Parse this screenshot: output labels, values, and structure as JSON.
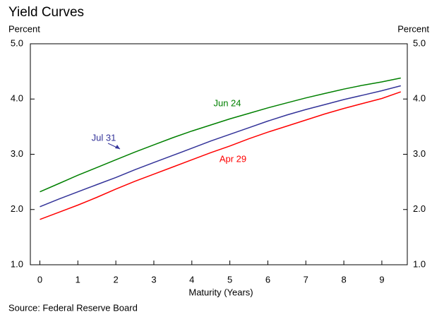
{
  "chart_data": {
    "type": "line",
    "title": "Yield Curves",
    "ylabel": "Percent",
    "y2label": "Percent",
    "xlabel": "Maturity (Years)",
    "source": "Source: Federal Reserve Board",
    "xlim": [
      -0.25,
      9.67
    ],
    "xticks": [
      0,
      1,
      2,
      3,
      4,
      5,
      6,
      7,
      8,
      9
    ],
    "ylim": [
      1,
      5
    ],
    "yticks": [
      {
        "value": 1,
        "label": "1.0"
      },
      {
        "value": 2,
        "label": "2.0"
      },
      {
        "value": 3,
        "label": "3.0"
      },
      {
        "value": 4,
        "label": "4.0"
      },
      {
        "value": 5,
        "label": "5.0"
      }
    ],
    "y2lim": [
      1,
      5
    ],
    "y2ticks": [
      {
        "value": 1,
        "label": "1.0"
      },
      {
        "value": 2,
        "label": "2.0"
      },
      {
        "value": 3,
        "label": "3.0"
      },
      {
        "value": 4,
        "label": "4.0"
      },
      {
        "value": 5,
        "label": "5.0"
      }
    ],
    "grid": false,
    "x": [
      0,
      0.5,
      1,
      1.5,
      2,
      2.5,
      3,
      3.5,
      4,
      4.5,
      5,
      5.5,
      6,
      6.5,
      7,
      7.5,
      8,
      8.5,
      9,
      9.5
    ],
    "series": [
      {
        "name": "Jun 24",
        "color": "#008000",
        "values": [
          2.32,
          2.47,
          2.62,
          2.76,
          2.9,
          3.04,
          3.17,
          3.3,
          3.42,
          3.53,
          3.64,
          3.74,
          3.84,
          3.93,
          4.02,
          4.1,
          4.18,
          4.25,
          4.31,
          4.38
        ]
      },
      {
        "name": "Jul 31",
        "color": "#333399",
        "values": [
          2.05,
          2.19,
          2.32,
          2.45,
          2.58,
          2.72,
          2.85,
          2.98,
          3.11,
          3.24,
          3.36,
          3.48,
          3.6,
          3.71,
          3.81,
          3.9,
          3.99,
          4.07,
          4.15,
          4.24
        ]
      },
      {
        "name": "Apr 29",
        "color": "#ff0000",
        "values": [
          1.82,
          1.95,
          2.08,
          2.22,
          2.37,
          2.51,
          2.64,
          2.77,
          2.9,
          3.03,
          3.15,
          3.28,
          3.4,
          3.51,
          3.62,
          3.73,
          3.83,
          3.92,
          4.01,
          4.13
        ]
      }
    ]
  }
}
